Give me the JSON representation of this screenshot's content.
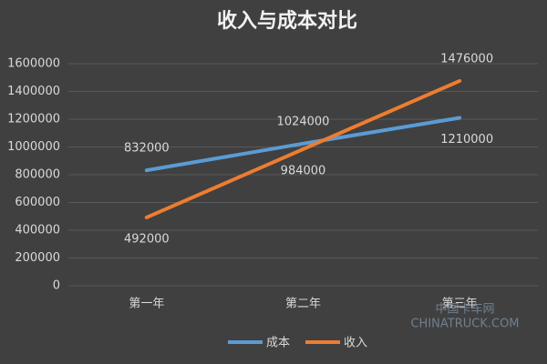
{
  "chart_data": {
    "type": "line",
    "title": "收入与成本对比",
    "categories": [
      "第一年",
      "第二年",
      "第三年"
    ],
    "series": [
      {
        "name": "成本",
        "color": "#5b9bd5",
        "values": [
          832000,
          1024000,
          1210000
        ]
      },
      {
        "name": "收入",
        "color": "#ed7d31",
        "values": [
          492000,
          984000,
          1476000
        ]
      }
    ],
    "ylim": [
      0,
      1600000
    ],
    "yticks": [
      0,
      200000,
      400000,
      600000,
      800000,
      1000000,
      1200000,
      1400000,
      1600000
    ],
    "grid": true,
    "legend": "bottom",
    "watermark": [
      "中国卡车网",
      "CHINATRUCK.COM"
    ]
  }
}
